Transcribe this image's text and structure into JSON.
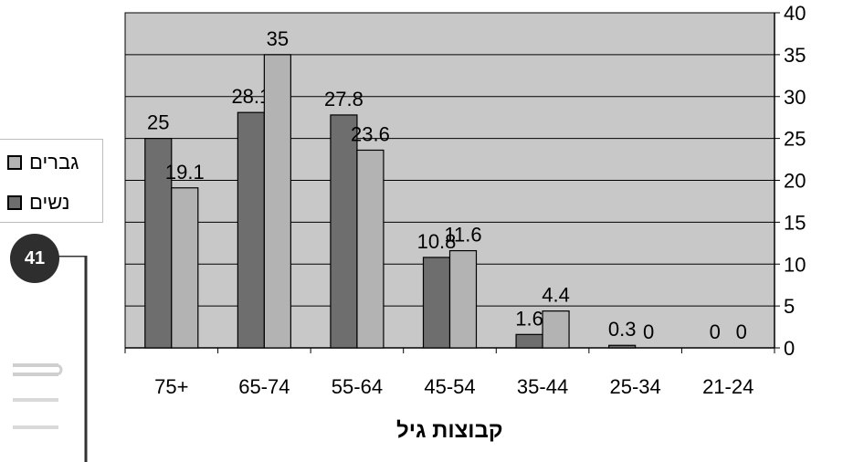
{
  "page_number": "41",
  "chart_data": {
    "type": "bar",
    "categories": [
      "75+",
      "65-74",
      "55-64",
      "45-54",
      "35-44",
      "25-34",
      "21-24"
    ],
    "series": [
      {
        "name": "נשים",
        "color": "#6e6e6e",
        "values": [
          25,
          28.1,
          27.8,
          10.8,
          1.6,
          0.3,
          0
        ]
      },
      {
        "name": "גברים",
        "color": "#b3b3b3",
        "values": [
          19.1,
          35,
          23.6,
          11.6,
          4.4,
          0,
          0
        ]
      }
    ],
    "data_labels": [
      [
        "25",
        "28.1",
        "27.8",
        "10.8",
        "1.6",
        "0.3",
        "0"
      ],
      [
        "19.1",
        "35",
        "23.6",
        "11.6",
        "4.4",
        "0",
        "0"
      ]
    ],
    "xlabel": "קבוצות גיל",
    "ylabel": "",
    "ylim": [
      0,
      40
    ],
    "yticks": [
      "0",
      "5",
      "10",
      "15",
      "20",
      "25",
      "30",
      "35",
      "40"
    ],
    "y_axis_position": "right",
    "plot_background": "#c8c8c8",
    "grid": true,
    "legend_position": "left",
    "legend_order": [
      "גברים",
      "נשים"
    ]
  }
}
